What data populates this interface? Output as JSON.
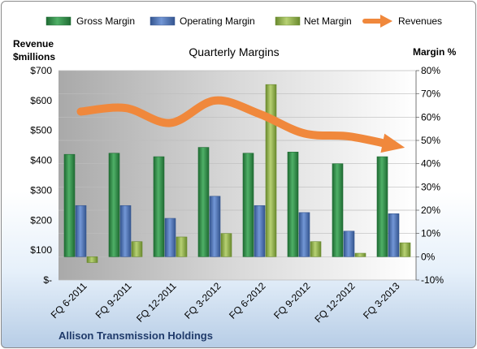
{
  "chart_data": {
    "type": "bar",
    "title": "Quarterly Margins",
    "footer": "Allison Transmission Holdings",
    "left_axis_label": [
      "Revenue",
      "$millions"
    ],
    "right_axis_label": "Margin %",
    "categories": [
      "FQ 6-2011",
      "FQ 9-2011",
      "FQ 12-2011",
      "FQ 3-2012",
      "FQ 6-2012",
      "FQ 9-2012",
      "FQ 12-2012",
      "FQ 3-2013"
    ],
    "left_ticks": [
      "$-",
      "$100",
      "$200",
      "$300",
      "$400",
      "$500",
      "$600",
      "$700"
    ],
    "right_ticks": [
      "-10%",
      "0%",
      "10%",
      "20%",
      "30%",
      "40%",
      "50%",
      "60%",
      "70%",
      "80%"
    ],
    "ylim_left": [
      0,
      700
    ],
    "ylim_right": [
      -10,
      80
    ],
    "legend_position": "top",
    "series": [
      {
        "name": "Gross Margin",
        "kind": "bar",
        "axis": "right",
        "unit": "%",
        "color": "#2f8a46",
        "values": [
          44,
          44.5,
          43,
          47,
          44.5,
          45,
          40,
          43
        ]
      },
      {
        "name": "Operating Margin",
        "kind": "bar",
        "axis": "right",
        "unit": "%",
        "color": "#4a72b8",
        "values": [
          22,
          22,
          16.5,
          26,
          22,
          19,
          11,
          18.5
        ]
      },
      {
        "name": "Net Margin",
        "kind": "bar",
        "axis": "right",
        "unit": "%",
        "color": "#8fb04a",
        "values": [
          -2.5,
          6.5,
          8.5,
          10,
          74,
          6.5,
          1.5,
          6
        ]
      },
      {
        "name": "Revenues",
        "kind": "line",
        "axis": "left",
        "unit": "$M",
        "color": "#f0883c",
        "values": [
          563,
          575,
          525,
          600,
          555,
          490,
          480,
          450
        ]
      }
    ]
  }
}
